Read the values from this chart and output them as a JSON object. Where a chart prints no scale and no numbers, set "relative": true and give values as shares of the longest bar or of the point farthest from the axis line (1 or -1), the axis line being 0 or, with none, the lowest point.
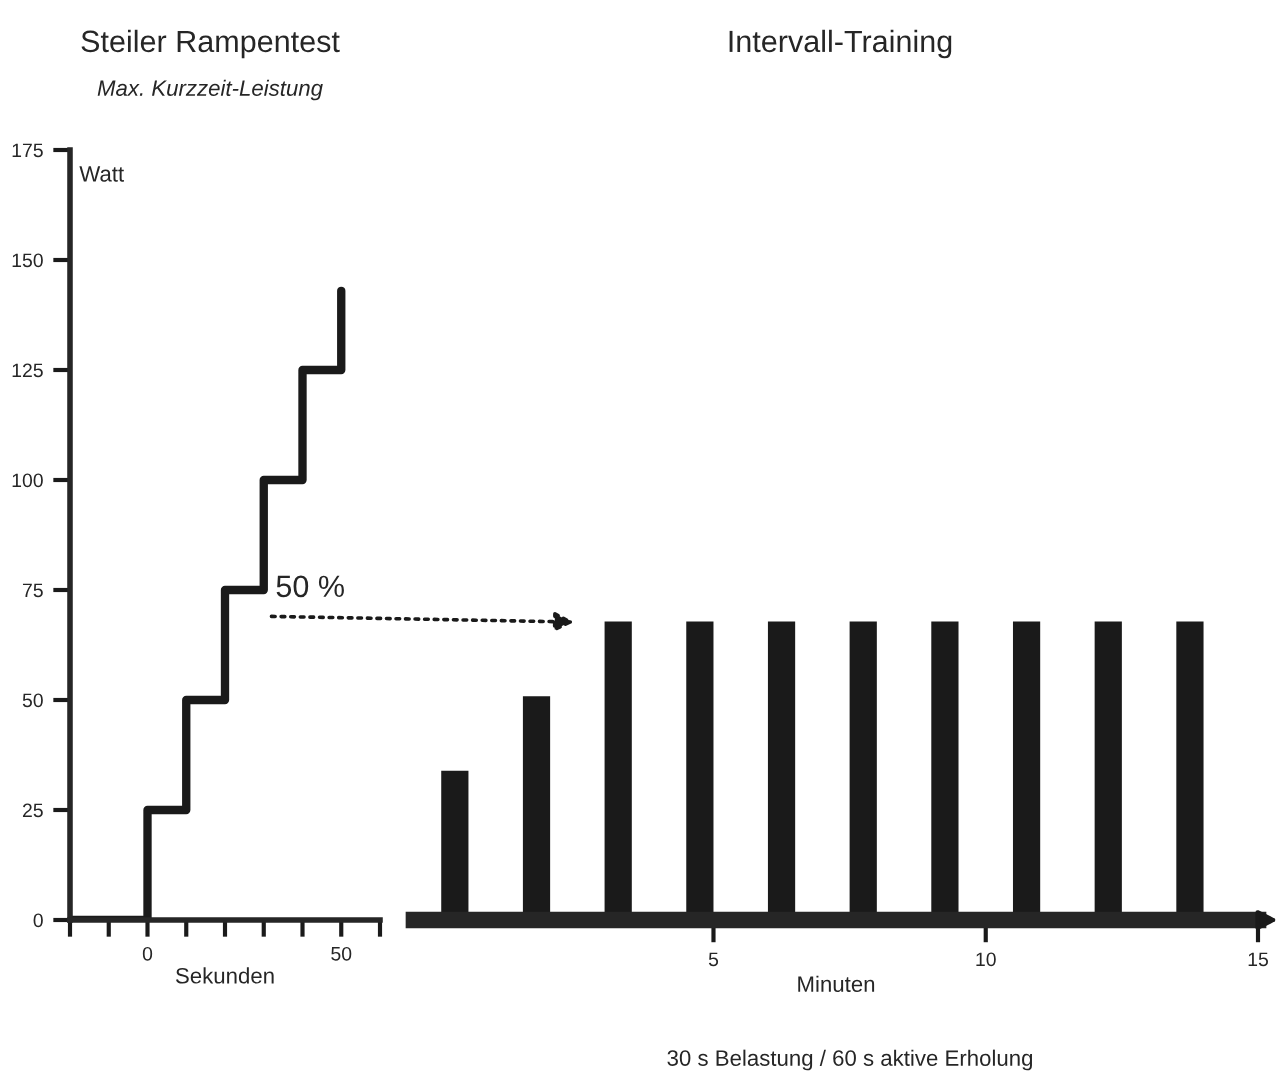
{
  "chart_data": [
    {
      "type": "step",
      "title": "Steiler Rampentest",
      "subtitle": "Max. Kurzzeit-Leistung",
      "xlabel": "Sekunden",
      "ylabel": "Watt",
      "x": [
        -20,
        0,
        10,
        20,
        30,
        40,
        50
      ],
      "values": [
        0,
        25,
        50,
        75,
        100,
        125,
        143
      ],
      "color": "#1a1a1a",
      "line_style": "solid",
      "marker": "none",
      "grid": false,
      "xlim": [
        -20,
        60
      ],
      "ylim": [
        0,
        175
      ],
      "xticks": [
        {
          "value": -20,
          "label": null
        },
        {
          "value": -10,
          "label": null
        },
        0,
        {
          "value": 10,
          "label": null
        },
        {
          "value": 20,
          "label": null
        },
        {
          "value": 30,
          "label": null
        },
        {
          "value": 40,
          "label": null
        },
        50,
        {
          "value": 60,
          "label": null
        }
      ],
      "yticks": [
        0,
        25,
        50,
        75,
        100,
        125,
        150,
        175
      ],
      "annotations": [
        "50 %"
      ]
    },
    {
      "type": "bar",
      "title": "Intervall-Training",
      "xlabel": "Minuten",
      "relative": true,
      "tick_labels": "x",
      "grid": false,
      "x": [
        0.25,
        1.75,
        3.25,
        4.75,
        6.25,
        7.75,
        9.25,
        10.75,
        12.25,
        13.75
      ],
      "values": [
        0.5,
        0.75,
        1,
        1,
        1,
        1,
        1,
        1,
        1,
        1
      ],
      "color": "#1a1a1a",
      "xlim": [
        -0.5,
        15
      ],
      "xticks": [
        5,
        10,
        15
      ],
      "annotations": [
        "30 s Belastung / 60 s aktive Erholung"
      ]
    }
  ]
}
